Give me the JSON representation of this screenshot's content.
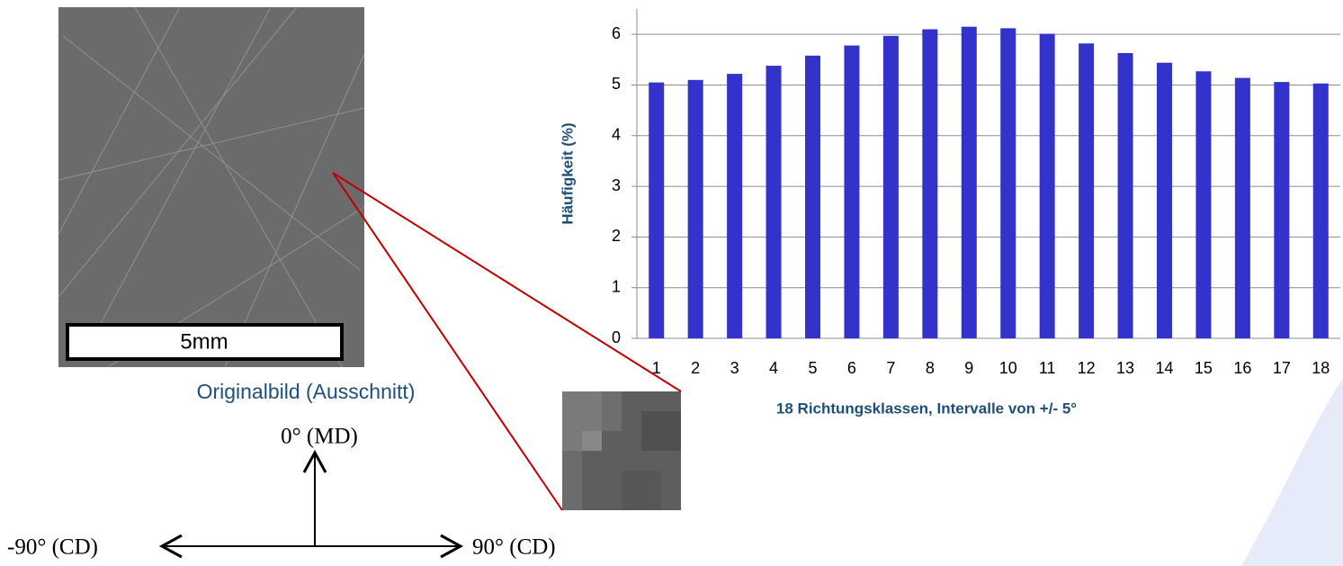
{
  "chart_data": {
    "type": "bar",
    "x_label": "18 Richtungsklassen,  Intervalle von +/- 5°",
    "y_label": "Häufigkeit (%)",
    "categories": [
      "1",
      "2",
      "3",
      "4",
      "5",
      "6",
      "7",
      "8",
      "9",
      "10",
      "11",
      "12",
      "13",
      "14",
      "15",
      "16",
      "17",
      "18"
    ],
    "values": [
      5.05,
      5.1,
      5.22,
      5.38,
      5.58,
      5.78,
      5.97,
      6.1,
      6.15,
      6.12,
      6.01,
      5.82,
      5.63,
      5.44,
      5.27,
      5.14,
      5.06,
      5.03
    ],
    "color": "#3333cc",
    "ylim": [
      0,
      6.5
    ],
    "yticks": [
      0,
      1,
      2,
      3,
      4,
      5,
      6
    ],
    "grid": true
  },
  "image": {
    "scale_label": "5mm",
    "caption": "Originalbild (Ausschnitt)"
  },
  "directions": {
    "up": "0° (MD)",
    "left": "-90° (CD)",
    "right": "90° (CD)"
  }
}
